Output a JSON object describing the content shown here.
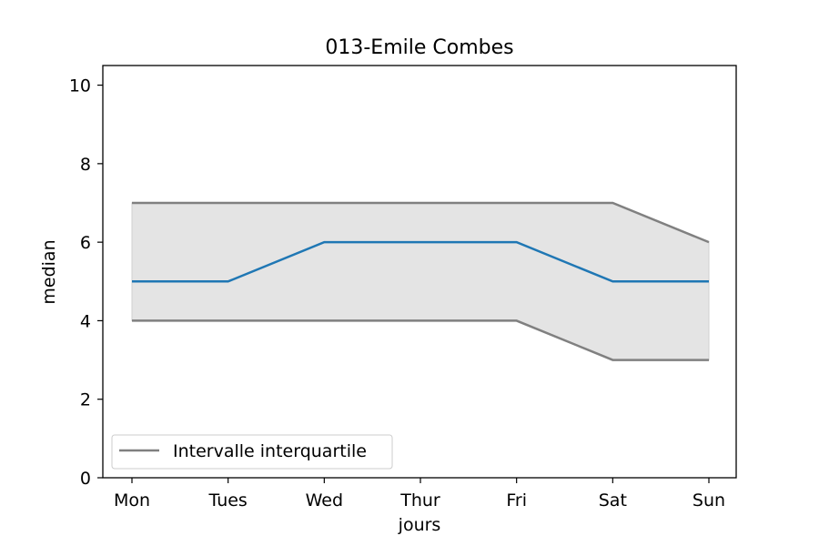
{
  "chart_data": {
    "type": "line",
    "title": "013-Emile Combes",
    "xlabel": "jours",
    "ylabel": "median",
    "categories": [
      "Mon",
      "Tues",
      "Wed",
      "Thur",
      "Fri",
      "Sat",
      "Sun"
    ],
    "ylim": [
      0,
      10.5
    ],
    "yticks": [
      0,
      2,
      4,
      6,
      8,
      10
    ],
    "grid": false,
    "legend_position": "lower-left",
    "series": [
      {
        "key": "median",
        "values": [
          5,
          5,
          6,
          6,
          6,
          5,
          5
        ],
        "color": "#1f77b4"
      },
      {
        "key": "q75",
        "values": [
          7,
          7,
          7,
          7,
          7,
          7,
          6
        ],
        "color": "#808080"
      },
      {
        "key": "q25",
        "values": [
          4,
          4,
          4,
          4,
          4,
          3,
          3
        ],
        "color": "#808080"
      }
    ],
    "band": {
      "upper": "q75",
      "lower": "q25",
      "color": "#e4e4e4"
    },
    "legend": [
      {
        "label": "Intervalle interquartile",
        "color": "#808080"
      }
    ]
  }
}
